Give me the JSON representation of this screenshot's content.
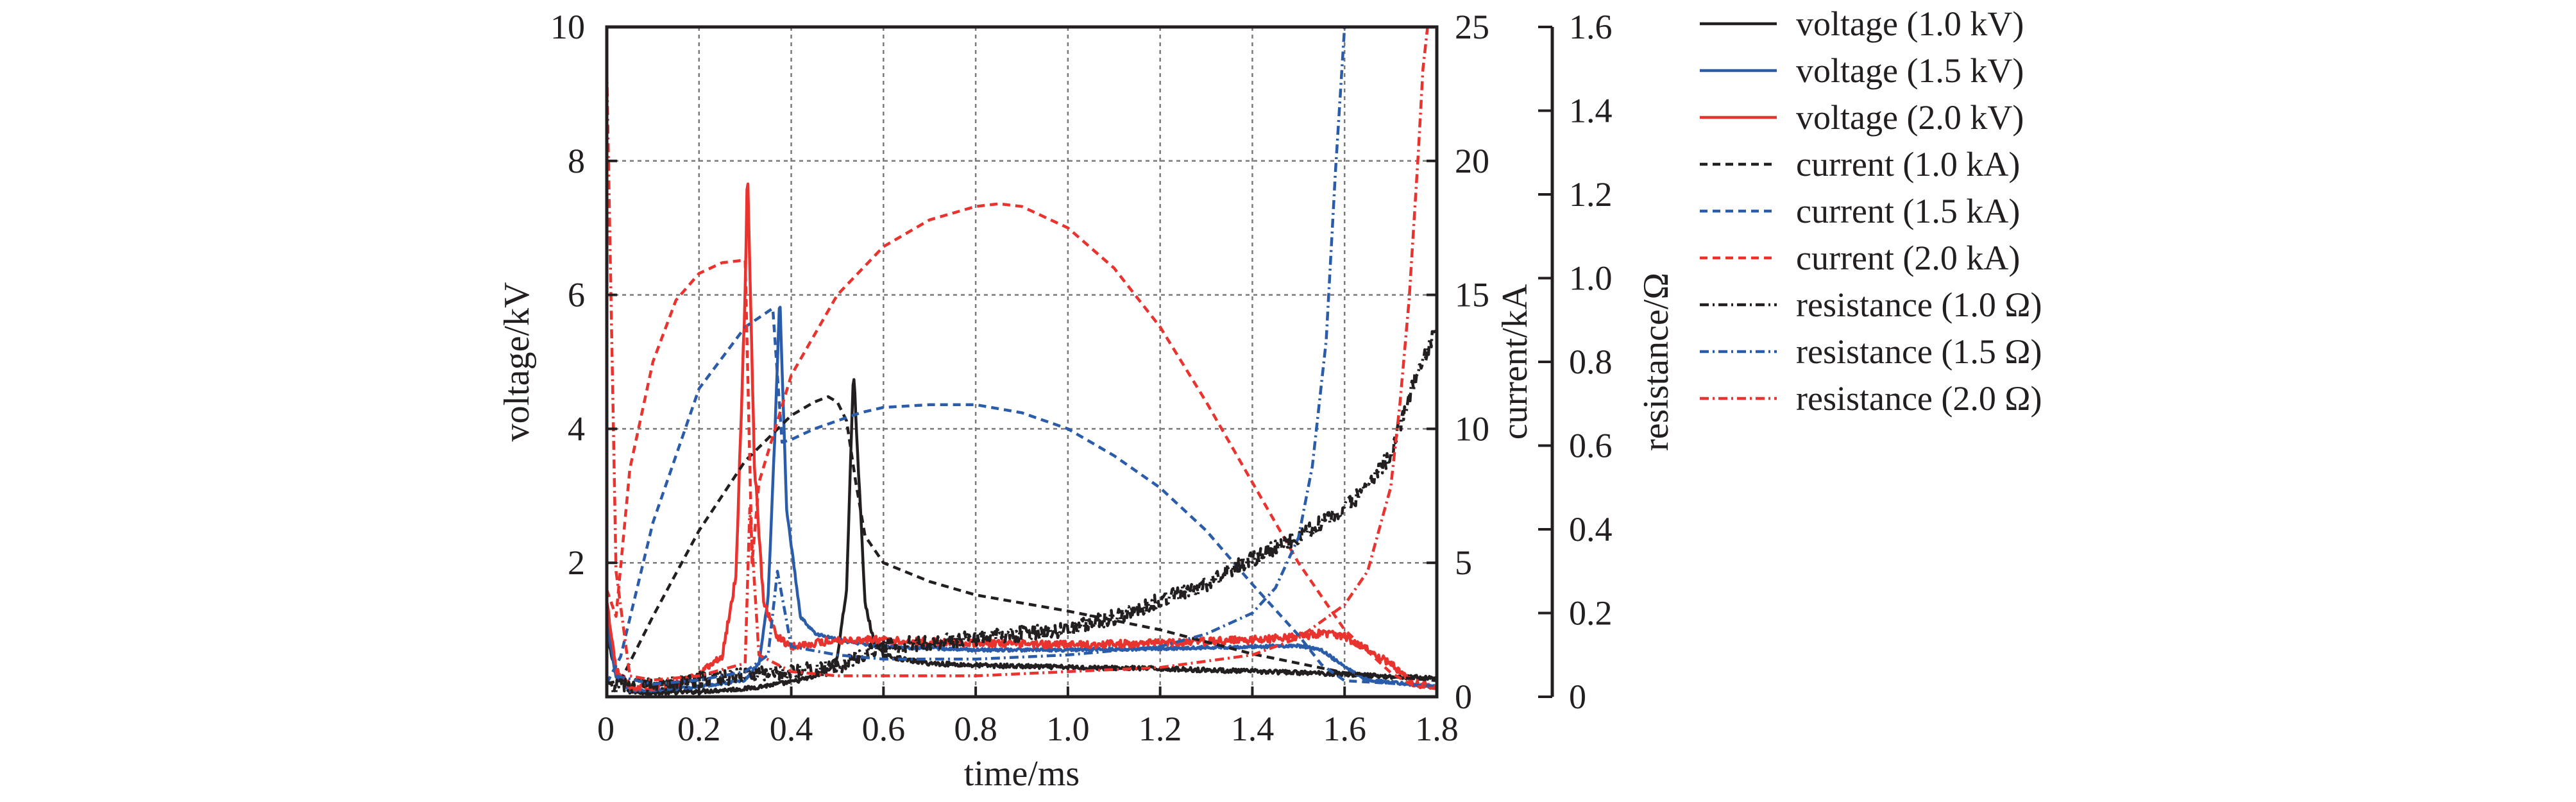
{
  "chart_data": {
    "type": "line",
    "xlabel": "time/ms",
    "xlim": [
      0,
      1.8
    ],
    "x_ticks": [
      "0",
      "0.2",
      "0.4",
      "0.6",
      "0.8",
      "1.0",
      "1.2",
      "1.4",
      "1.6",
      "1.8"
    ],
    "grid": true,
    "legend_position": "right",
    "axes": {
      "voltage": {
        "label": "voltage/kV",
        "lim": [
          0,
          10
        ],
        "ticks": [
          "2",
          "4",
          "6",
          "8",
          "10"
        ]
      },
      "current": {
        "label": "current/kA",
        "lim": [
          0,
          25
        ],
        "ticks": [
          "0",
          "5",
          "10",
          "15",
          "20",
          "25"
        ]
      },
      "resistance": {
        "label": "resistance/Ω",
        "lim": [
          0,
          1.6
        ],
        "ticks": [
          "0",
          "0.2",
          "0.4",
          "0.6",
          "0.8",
          "1.0",
          "1.2",
          "1.4",
          "1.6"
        ]
      }
    },
    "series": [
      {
        "name": "voltage (1.0 kV)",
        "axis": "voltage",
        "color": "#231f20",
        "dash": "solid",
        "noise": 0.03,
        "x": [
          0,
          0.02,
          0.05,
          0.1,
          0.2,
          0.3,
          0.4,
          0.45,
          0.48,
          0.5,
          0.52,
          0.535,
          0.545,
          0.56,
          0.58,
          0.6,
          0.65,
          0.7,
          0.8,
          1.0,
          1.2,
          1.4,
          1.6,
          1.7,
          1.8
        ],
        "y": [
          0.9,
          0.35,
          0.08,
          0.06,
          0.08,
          0.12,
          0.22,
          0.3,
          0.4,
          0.6,
          1.6,
          4.9,
          3.5,
          1.4,
          0.8,
          0.62,
          0.55,
          0.5,
          0.47,
          0.44,
          0.42,
          0.38,
          0.34,
          0.3,
          0.28
        ]
      },
      {
        "name": "voltage (1.5 kV)",
        "axis": "voltage",
        "color": "#2a5caa",
        "dash": "solid",
        "noise": 0.02,
        "x": [
          0,
          0.02,
          0.05,
          0.1,
          0.2,
          0.3,
          0.33,
          0.35,
          0.365,
          0.375,
          0.39,
          0.42,
          0.45,
          0.5,
          0.6,
          0.8,
          1.0,
          1.2,
          1.4,
          1.5,
          1.55,
          1.6,
          1.65,
          1.8
        ],
        "y": [
          1.1,
          0.3,
          0.1,
          0.1,
          0.15,
          0.25,
          0.5,
          1.5,
          4.0,
          6.0,
          2.8,
          1.2,
          0.95,
          0.85,
          0.75,
          0.7,
          0.7,
          0.72,
          0.75,
          0.76,
          0.7,
          0.45,
          0.25,
          0.15
        ]
      },
      {
        "name": "voltage (2.0 kV)",
        "axis": "voltage",
        "color": "#e8332f",
        "dash": "solid",
        "noise": 0.05,
        "x": [
          0,
          0.02,
          0.05,
          0.1,
          0.15,
          0.2,
          0.25,
          0.28,
          0.3,
          0.305,
          0.32,
          0.34,
          0.37,
          0.4,
          0.5,
          0.6,
          0.8,
          1.0,
          1.2,
          1.4,
          1.5,
          1.55,
          1.6,
          1.7,
          1.75,
          1.8
        ],
        "y": [
          1.4,
          0.4,
          0.15,
          0.15,
          0.2,
          0.35,
          0.6,
          1.8,
          6.0,
          8.0,
          3.5,
          1.4,
          0.9,
          0.75,
          0.85,
          0.85,
          0.8,
          0.78,
          0.8,
          0.85,
          0.9,
          0.95,
          0.9,
          0.5,
          0.2,
          0.15
        ]
      },
      {
        "name": "current (1.0 kA)",
        "axis": "current",
        "color": "#231f20",
        "dash": "12 8",
        "noise": 0,
        "x": [
          0,
          0.03,
          0.1,
          0.2,
          0.3,
          0.4,
          0.45,
          0.48,
          0.5,
          0.52,
          0.54,
          0.56,
          0.6,
          0.7,
          0.8,
          1.0,
          1.2,
          1.4,
          1.6,
          1.8
        ],
        "y": [
          0.5,
          0.6,
          3.0,
          6.2,
          8.8,
          10.5,
          11.0,
          11.2,
          11.0,
          10.3,
          8.0,
          6.0,
          5.0,
          4.3,
          3.8,
          3.2,
          2.5,
          1.6,
          0.9,
          0.6
        ]
      },
      {
        "name": "current (1.5 kA)",
        "axis": "current",
        "color": "#2a5caa",
        "dash": "12 8",
        "noise": 0,
        "x": [
          0,
          0.03,
          0.1,
          0.2,
          0.3,
          0.36,
          0.38,
          0.4,
          0.45,
          0.5,
          0.55,
          0.6,
          0.7,
          0.8,
          0.9,
          1.0,
          1.1,
          1.2,
          1.3,
          1.4,
          1.5,
          1.55,
          1.6,
          1.8
        ],
        "y": [
          0.5,
          1.5,
          6.5,
          11.5,
          13.8,
          14.5,
          9.5,
          9.6,
          10.0,
          10.3,
          10.6,
          10.8,
          10.9,
          10.9,
          10.6,
          10.0,
          9.0,
          7.8,
          6.2,
          4.2,
          2.3,
          1.2,
          0.6,
          0.4
        ]
      },
      {
        "name": "current (2.0 kA)",
        "axis": "current",
        "color": "#e8332f",
        "dash": "12 8",
        "noise": 0,
        "x": [
          0,
          0.02,
          0.05,
          0.1,
          0.15,
          0.2,
          0.25,
          0.3,
          0.315,
          0.33,
          0.4,
          0.5,
          0.6,
          0.7,
          0.8,
          0.85,
          0.9,
          1.0,
          1.1,
          1.2,
          1.3,
          1.4,
          1.5,
          1.6,
          1.7,
          1.75,
          1.8
        ],
        "y": [
          4.0,
          3.0,
          8.5,
          12.5,
          14.8,
          15.8,
          16.2,
          16.3,
          5.0,
          8.0,
          12.0,
          15.0,
          16.8,
          17.8,
          18.3,
          18.4,
          18.3,
          17.5,
          16.0,
          13.8,
          11.0,
          8.0,
          5.0,
          2.5,
          0.9,
          0.4,
          0.3
        ]
      },
      {
        "name": "resistance (1.0 Ω)",
        "axis": "resistance",
        "color": "#231f20",
        "dash": "14 6 3 6",
        "noise": 0.018,
        "x": [
          0,
          0.05,
          0.1,
          0.2,
          0.3,
          0.4,
          0.5,
          0.55,
          0.6,
          0.7,
          0.8,
          0.9,
          1.0,
          1.1,
          1.2,
          1.3,
          1.4,
          1.5,
          1.6,
          1.65,
          1.7,
          1.75,
          1.8
        ],
        "y": [
          0.02,
          0.03,
          0.03,
          0.04,
          0.05,
          0.06,
          0.07,
          0.1,
          0.12,
          0.13,
          0.14,
          0.15,
          0.16,
          0.19,
          0.23,
          0.27,
          0.33,
          0.38,
          0.45,
          0.5,
          0.58,
          0.75,
          0.88
        ]
      },
      {
        "name": "resistance (1.5 Ω)",
        "axis": "resistance",
        "color": "#2a5caa",
        "dash": "14 6 3 6",
        "noise": 0,
        "x": [
          0.02,
          0.1,
          0.2,
          0.3,
          0.35,
          0.37,
          0.4,
          0.5,
          0.6,
          0.8,
          1.0,
          1.2,
          1.3,
          1.4,
          1.45,
          1.5,
          1.53,
          1.56,
          1.58,
          1.6
        ],
        "y": [
          0.05,
          0.03,
          0.04,
          0.06,
          0.1,
          0.3,
          0.12,
          0.1,
          0.09,
          0.09,
          0.1,
          0.12,
          0.15,
          0.2,
          0.26,
          0.38,
          0.55,
          0.85,
          1.25,
          1.6
        ]
      },
      {
        "name": "resistance (2.0 Ω)",
        "axis": "resistance",
        "color": "#e8332f",
        "dash": "14 6 3 6",
        "noise": 0,
        "x": [
          0,
          0.02,
          0.05,
          0.1,
          0.2,
          0.3,
          0.31,
          0.33,
          0.4,
          0.5,
          0.6,
          0.8,
          1.0,
          1.2,
          1.4,
          1.5,
          1.6,
          1.65,
          1.7,
          1.72,
          1.74,
          1.76,
          1.77,
          1.78
        ],
        "y": [
          1.5,
          0.3,
          0.05,
          0.04,
          0.05,
          0.08,
          0.45,
          0.1,
          0.06,
          0.05,
          0.05,
          0.05,
          0.06,
          0.07,
          0.1,
          0.14,
          0.22,
          0.3,
          0.5,
          0.7,
          0.95,
          1.3,
          1.5,
          1.6
        ]
      }
    ]
  }
}
